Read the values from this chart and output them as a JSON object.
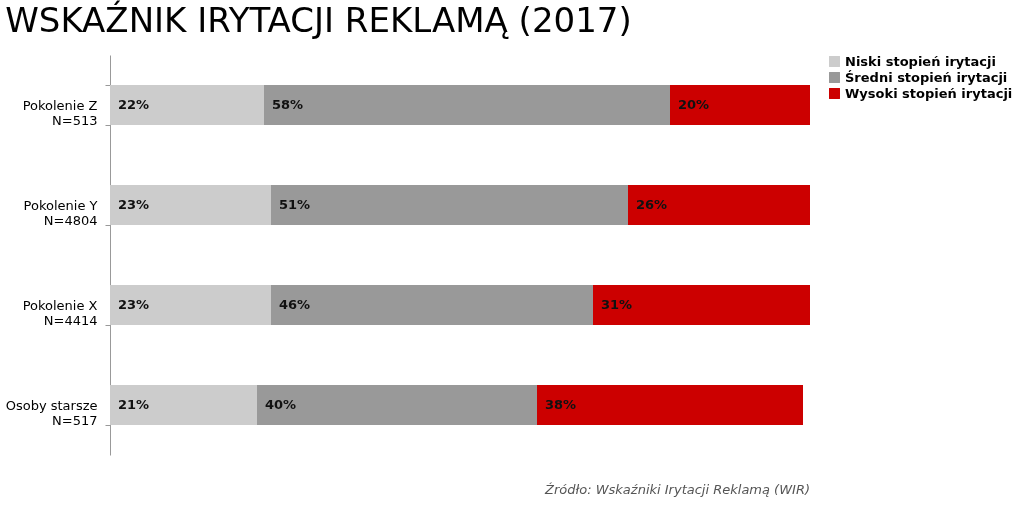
{
  "chart_data": {
    "type": "bar",
    "orientation": "horizontal",
    "stacked": true,
    "title": "WSKAŹNIK IRYTACJI REKLAMĄ (2017)",
    "categories": [
      "Pokolenie Z\nN=513",
      "Pokolenie Y\nN=4804",
      "Pokolenie X\nN=4414",
      "Osoby starsze\nN=517"
    ],
    "series": [
      {
        "name": "Niski stopień irytacji",
        "color": "#cccccc",
        "values": [
          22,
          23,
          23,
          21
        ],
        "value_labels": [
          "22%",
          "23%",
          "23%",
          "21%"
        ]
      },
      {
        "name": "Średni stopień irytacji",
        "color": "#999999",
        "values": [
          58,
          51,
          46,
          40
        ],
        "value_labels": [
          "58%",
          "51%",
          "46%",
          "40%"
        ]
      },
      {
        "name": "Wysoki stopień irytacji",
        "color": "#cc0000",
        "values": [
          20,
          26,
          31,
          38
        ],
        "value_labels": [
          "20%",
          "26%",
          "31%",
          "38%"
        ]
      }
    ],
    "legend": "right",
    "grid": false,
    "annotations": [
      "Źródło:  Wskaźniki Irytacji Reklamą (WIR)"
    ]
  }
}
